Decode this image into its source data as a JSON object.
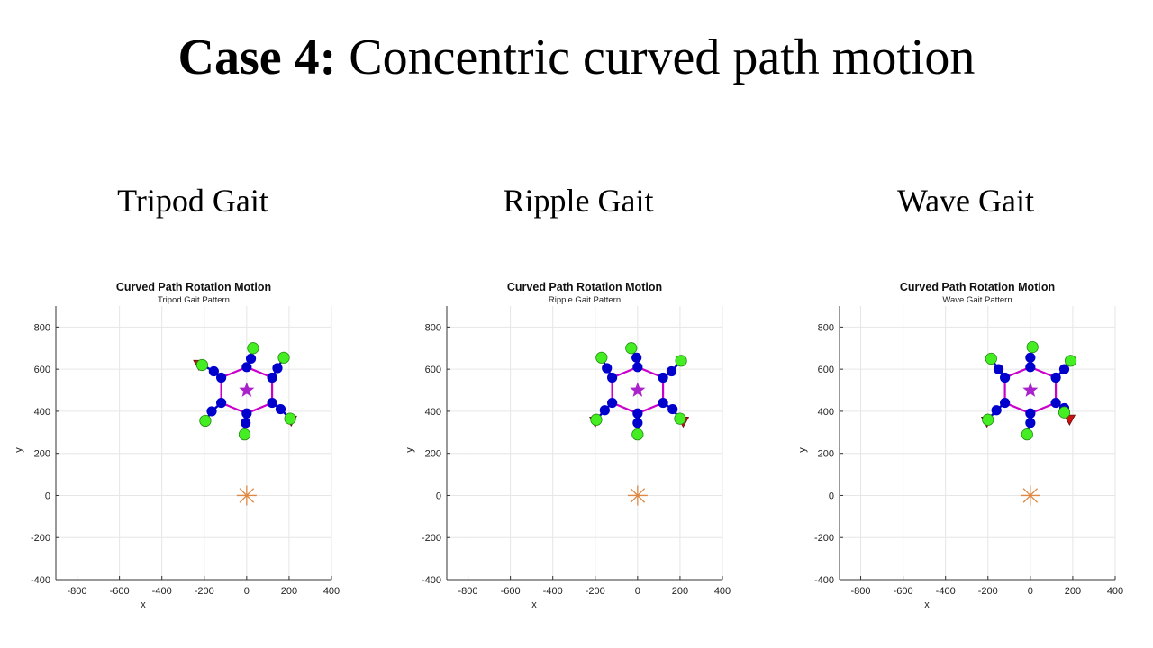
{
  "slide": {
    "title_bold": "Case 4:",
    "title_rest": "Concentric curved path motion",
    "gait_labels": [
      "Tripod Gait",
      "Ripple Gait",
      "Wave Gait"
    ]
  },
  "colors": {
    "body_outline": "#cc00cc",
    "joint": "#0000cc",
    "foot": "#44ee22",
    "foot_marker_red": "#cc1111",
    "center_star": "#aa22cc",
    "rotation_center": "#dd8844",
    "grid": "#e6e6e6"
  },
  "chart_data": [
    {
      "type": "scatter",
      "title": "Curved Path Rotation Motion",
      "subtitle": "Tripod Gait Pattern",
      "xlabel": "x",
      "ylabel": "y",
      "xlim": [
        -900,
        400
      ],
      "ylim": [
        -400,
        900
      ],
      "xticks": [
        -800,
        -600,
        -400,
        -200,
        0,
        200,
        400
      ],
      "yticks": [
        800,
        600,
        400,
        200,
        0,
        -200,
        -400
      ],
      "grid": true,
      "body_center": [
        0,
        500
      ],
      "rotation_center": [
        0,
        0
      ],
      "body_hexagon": [
        [
          -120,
          560
        ],
        [
          0,
          610
        ],
        [
          120,
          560
        ],
        [
          120,
          440
        ],
        [
          0,
          390
        ],
        [
          -120,
          440
        ]
      ],
      "joint_inner": [
        [
          -155,
          590
        ],
        [
          20,
          650
        ],
        [
          145,
          605
        ],
        [
          160,
          410
        ],
        [
          -5,
          345
        ],
        [
          -165,
          400
        ]
      ],
      "feet": [
        [
          -210,
          620
        ],
        [
          30,
          700
        ],
        [
          175,
          655
        ],
        [
          205,
          365
        ],
        [
          -10,
          290
        ],
        [
          -195,
          355
        ]
      ],
      "red_markers": [
        [
          -225,
          625
        ],
        [
          210,
          360
        ]
      ]
    },
    {
      "type": "scatter",
      "title": "Curved Path Rotation Motion",
      "subtitle": "Ripple Gait Pattern",
      "xlabel": "x",
      "ylabel": "y",
      "xlim": [
        -900,
        400
      ],
      "ylim": [
        -400,
        900
      ],
      "xticks": [
        -800,
        -600,
        -400,
        -200,
        0,
        200,
        400
      ],
      "yticks": [
        800,
        600,
        400,
        200,
        0,
        -200,
        -400
      ],
      "grid": true,
      "body_center": [
        0,
        500
      ],
      "rotation_center": [
        0,
        0
      ],
      "body_hexagon": [
        [
          -120,
          560
        ],
        [
          0,
          610
        ],
        [
          120,
          560
        ],
        [
          120,
          440
        ],
        [
          0,
          390
        ],
        [
          -120,
          440
        ]
      ],
      "joint_inner": [
        [
          -145,
          605
        ],
        [
          -5,
          655
        ],
        [
          160,
          590
        ],
        [
          165,
          410
        ],
        [
          0,
          345
        ],
        [
          -155,
          405
        ]
      ],
      "feet": [
        [
          -170,
          655
        ],
        [
          -30,
          700
        ],
        [
          205,
          640
        ],
        [
          200,
          365
        ],
        [
          0,
          290
        ],
        [
          -195,
          360
        ]
      ],
      "red_markers": [
        [
          -200,
          355
        ],
        [
          215,
          355
        ]
      ]
    },
    {
      "type": "scatter",
      "title": "Curved Path Rotation Motion",
      "subtitle": "Wave Gait Pattern",
      "xlabel": "x",
      "ylabel": "y",
      "xlim": [
        -900,
        400
      ],
      "ylim": [
        -400,
        900
      ],
      "xticks": [
        -800,
        -600,
        -400,
        -200,
        0,
        200,
        400
      ],
      "yticks": [
        800,
        600,
        400,
        200,
        0,
        -200,
        -400
      ],
      "grid": true,
      "body_center": [
        0,
        500
      ],
      "rotation_center": [
        0,
        0
      ],
      "body_hexagon": [
        [
          -120,
          560
        ],
        [
          0,
          610
        ],
        [
          120,
          560
        ],
        [
          120,
          440
        ],
        [
          0,
          390
        ],
        [
          -120,
          440
        ]
      ],
      "joint_inner": [
        [
          -150,
          600
        ],
        [
          0,
          655
        ],
        [
          160,
          600
        ],
        [
          160,
          415
        ],
        [
          0,
          345
        ],
        [
          -160,
          405
        ]
      ],
      "feet": [
        [
          -185,
          650
        ],
        [
          10,
          705
        ],
        [
          190,
          640
        ],
        [
          160,
          395
        ],
        [
          -15,
          290
        ],
        [
          -200,
          360
        ]
      ],
      "red_markers": [
        [
          -205,
          355
        ],
        [
          185,
          365
        ]
      ]
    }
  ]
}
